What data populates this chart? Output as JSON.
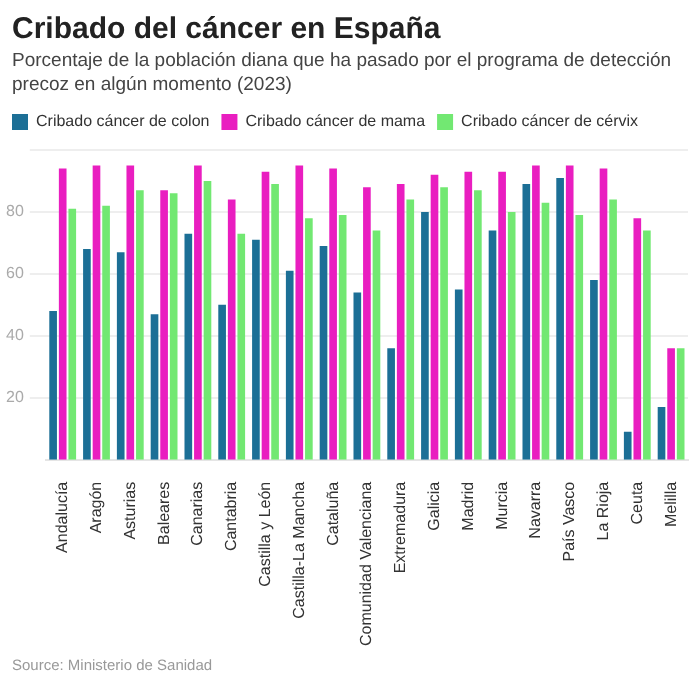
{
  "chart_data": {
    "type": "bar",
    "title": "Cribado del cáncer en España",
    "subtitle": "Porcentaje de la población diana que ha pasado por el programa de detección precoz en algún momento (2023)",
    "categories": [
      "Andalucía",
      "Aragón",
      "Asturias",
      "Baleares",
      "Canarias",
      "Cantabria",
      "Castilla y León",
      "Castilla-La Mancha",
      "Cataluña",
      "Comunidad Valenciana",
      "Extremadura",
      "Galicia",
      "Madrid",
      "Murcia",
      "Navarra",
      "País Vasco",
      "La Rioja",
      "Ceuta",
      "Melilla"
    ],
    "series": [
      {
        "name": "Cribado cáncer de colon",
        "color": "#1c6f96",
        "values": [
          48,
          68,
          67,
          47,
          73,
          50,
          71,
          61,
          69,
          54,
          36,
          80,
          55,
          74,
          89,
          91,
          58,
          9,
          17
        ]
      },
      {
        "name": "Cribado cáncer de mama",
        "color": "#e91ec0",
        "values": [
          94,
          95,
          95,
          87,
          95,
          84,
          93,
          95,
          94,
          88,
          89,
          92,
          93,
          93,
          95,
          95,
          94,
          78,
          36
        ]
      },
      {
        "name": "Cribado cáncer de cérvix",
        "color": "#72e872",
        "values": [
          81,
          82,
          87,
          86,
          90,
          73,
          89,
          78,
          79,
          74,
          84,
          88,
          87,
          80,
          83,
          79,
          84,
          74,
          36
        ]
      }
    ],
    "ylim": [
      0,
      100
    ],
    "yticks": [
      20,
      40,
      60,
      80,
      {
        "value": 100,
        "label": null
      }
    ],
    "grid": "y",
    "legend": "top left",
    "annotations": [
      "Source: Ministerio de Sanidad"
    ]
  }
}
